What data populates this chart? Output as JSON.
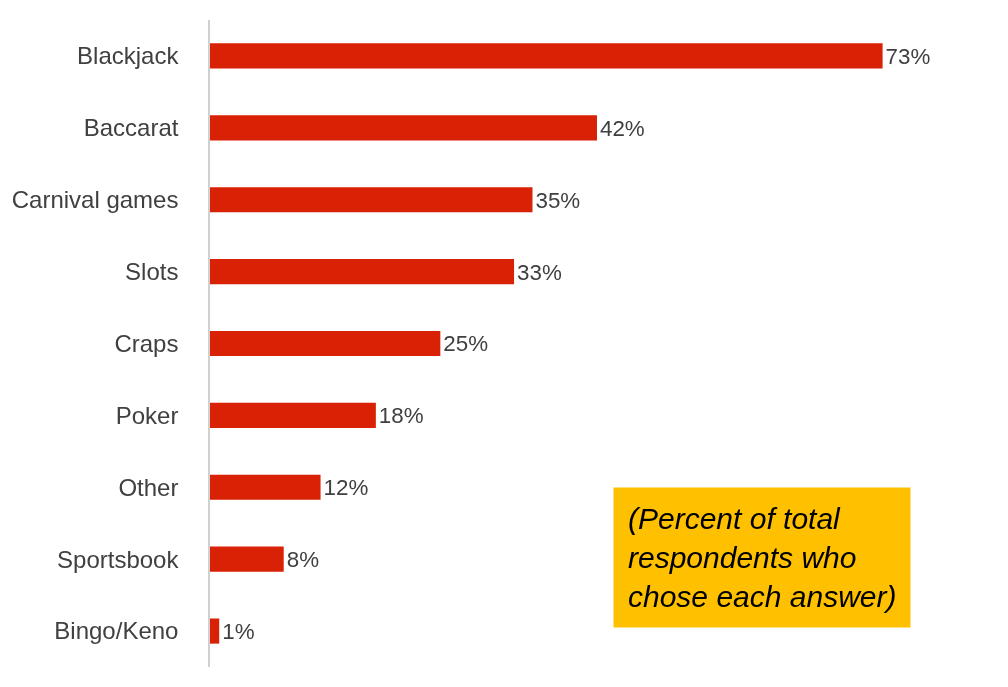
{
  "chart_data": {
    "type": "bar",
    "orientation": "horizontal",
    "categories": [
      "Blackjack",
      "Baccarat",
      "Carnival games",
      "Slots",
      "Craps",
      "Poker",
      "Other",
      "Sportsbook",
      "Bingo/Keno"
    ],
    "values": [
      73,
      42,
      35,
      33,
      25,
      18,
      12,
      8,
      1
    ],
    "value_labels": [
      "73%",
      "42%",
      "35%",
      "33%",
      "25%",
      "18%",
      "12%",
      "8%",
      "1%"
    ],
    "color": "#d92106",
    "annotations": [
      "(Percent of total\nrespondents who\nchose each answer)"
    ]
  }
}
